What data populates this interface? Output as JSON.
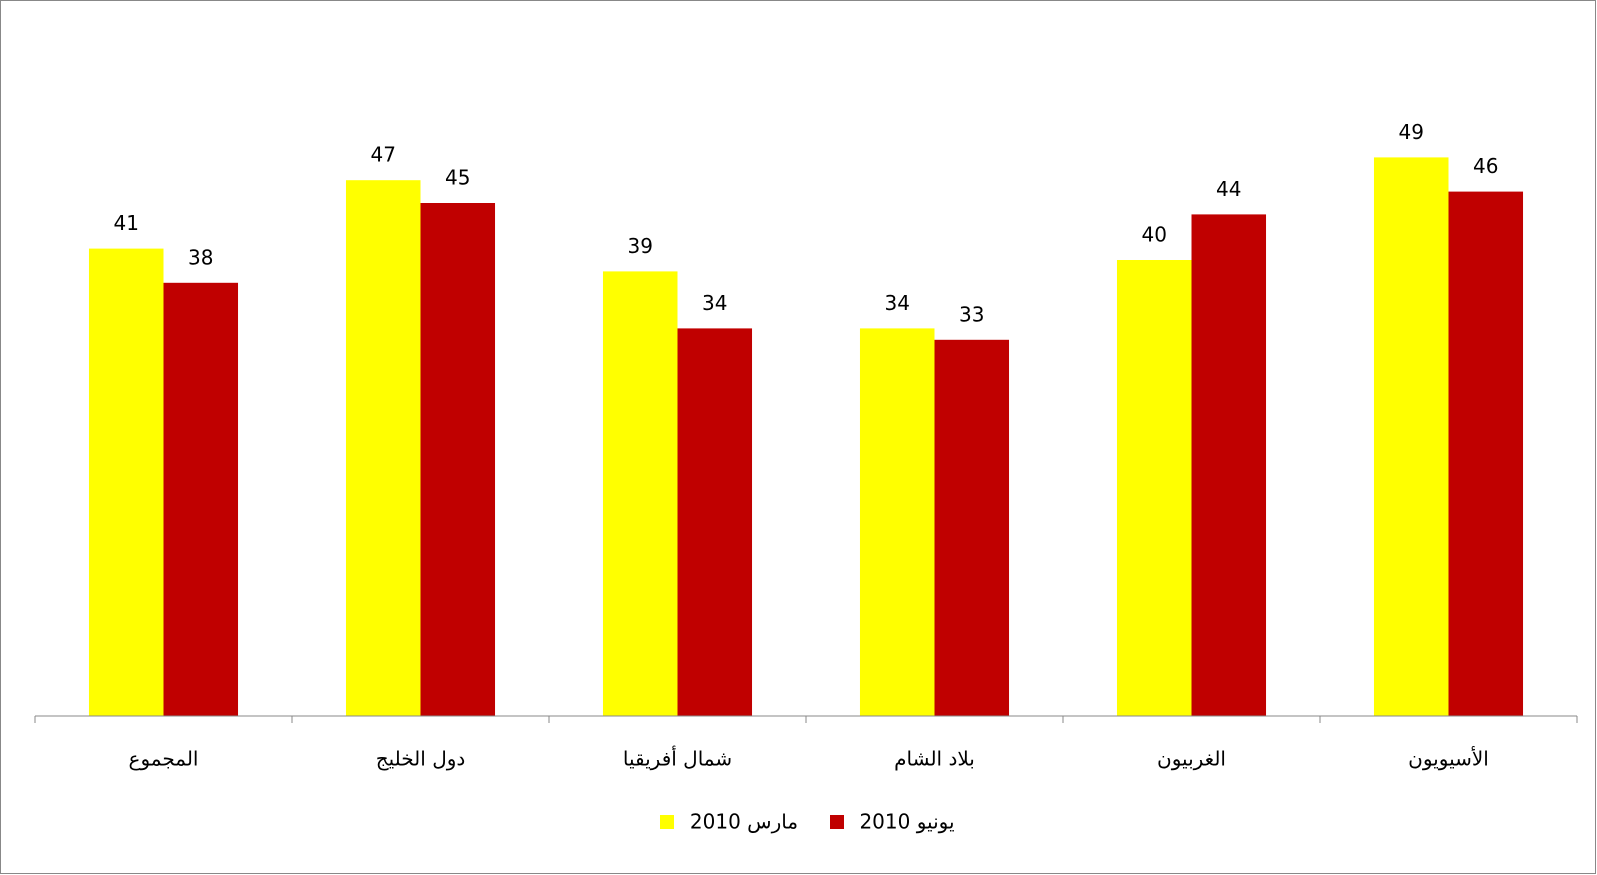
{
  "chart_data": {
    "type": "bar",
    "categories": [
      "المجموع",
      "دول الخليج",
      "شمال أفريقيا",
      "بلاد الشام",
      "الغربيون",
      "الأسيويون"
    ],
    "series": [
      {
        "name": "مارس 2010",
        "color": "#ffff00",
        "values": [
          41,
          47,
          39,
          34,
          40,
          49
        ]
      },
      {
        "name": "يونيو 2010",
        "color": "#c00000",
        "values": [
          38,
          45,
          34,
          33,
          44,
          46
        ]
      }
    ],
    "ylim": [
      0,
      60
    ],
    "legend": "bottom"
  }
}
